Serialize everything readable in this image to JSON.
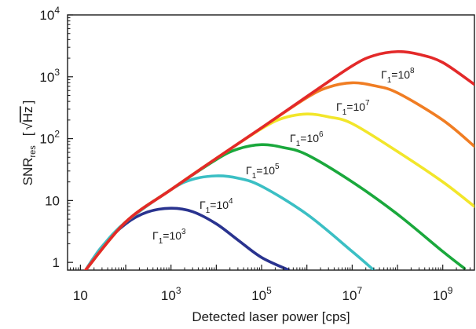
{
  "chart_data": {
    "type": "line",
    "title": "",
    "xlabel": "Detected laser power  [cps]",
    "ylabel": {
      "base": "SNR",
      "sub": "res",
      "bracket_open": "[",
      "sqrt": "√",
      "unit": "Hz",
      "bracket_close": "]"
    },
    "x_scale": "log",
    "y_scale": "log",
    "xlim": [
      5.2,
      5000000000
    ],
    "ylim": [
      0.75,
      10000
    ],
    "x_ticks": [
      {
        "value": 10,
        "base": "10",
        "exp": ""
      },
      {
        "value": 1000,
        "base": "10",
        "exp": "3"
      },
      {
        "value": 100000,
        "base": "10",
        "exp": "5"
      },
      {
        "value": 10000000,
        "base": "10",
        "exp": "7"
      },
      {
        "value": 1000000000,
        "base": "10",
        "exp": "9"
      }
    ],
    "y_ticks": [
      {
        "value": 1,
        "base": "1",
        "exp": ""
      },
      {
        "value": 10,
        "base": "10",
        "exp": ""
      },
      {
        "value": 100,
        "base": "10",
        "exp": "2"
      },
      {
        "value": 1000,
        "base": "10",
        "exp": "3"
      },
      {
        "value": 10000,
        "base": "10",
        "exp": "4"
      }
    ],
    "grid": false,
    "legend": "none",
    "series": [
      {
        "color": "#29338f",
        "label": {
          "sym": "Γ",
          "sub": "1",
          "eq": "=10",
          "exp": "3"
        },
        "x": [
          13,
          30,
          100,
          300,
          1000,
          3000,
          10000,
          30000,
          100000,
          400000
        ],
        "y": [
          0.75,
          1.8,
          4.2,
          6.5,
          7.5,
          6.6,
          4.2,
          2.3,
          1.2,
          0.75
        ]
      },
      {
        "color": "#3bbfc4",
        "label": {
          "sym": "Γ",
          "sub": "1",
          "eq": "=10",
          "exp": "4"
        },
        "x": [
          13,
          30,
          100,
          1000,
          3000,
          10000,
          30000,
          100000,
          1000000,
          10000000,
          30000000
        ],
        "y": [
          0.75,
          1.8,
          4.5,
          15,
          22,
          25,
          23,
          17,
          6,
          1.5,
          0.75
        ]
      },
      {
        "color": "#1aa83c",
        "label": {
          "sym": "Γ",
          "sub": "1",
          "eq": "=10",
          "exp": "5"
        },
        "x": [
          13,
          100,
          1000,
          10000,
          30000,
          100000,
          300000,
          1000000,
          10000000,
          100000000,
          1000000000,
          3000000000
        ],
        "y": [
          0.75,
          4.5,
          15,
          46,
          68,
          80,
          72,
          55,
          20,
          6,
          1.5,
          0.8
        ]
      },
      {
        "color": "#f2e62a",
        "label": {
          "sym": "Γ",
          "sub": "1",
          "eq": "=10",
          "exp": "6"
        },
        "x": [
          13,
          100,
          1000,
          10000,
          100000,
          300000,
          1000000,
          3000000,
          10000000,
          100000000,
          1000000000,
          5000000000
        ],
        "y": [
          0.75,
          4.5,
          15,
          48,
          145,
          215,
          250,
          225,
          175,
          62,
          20,
          8
        ]
      },
      {
        "color": "#f07d23",
        "label": {
          "sym": "Γ",
          "sub": "1",
          "eq": "=10",
          "exp": "7"
        },
        "x": [
          13,
          100,
          1000,
          10000,
          100000,
          1000000,
          3000000,
          10000000,
          30000000,
          100000000,
          1000000000,
          5000000000
        ],
        "y": [
          0.75,
          4.5,
          15,
          48,
          150,
          460,
          680,
          800,
          720,
          550,
          200,
          75
        ]
      },
      {
        "color": "#e32929",
        "label": {
          "sym": "Γ",
          "sub": "1",
          "eq": "=10",
          "exp": "8"
        },
        "x": [
          13,
          100,
          1000,
          10000,
          100000,
          1000000,
          10000000,
          30000000,
          100000000,
          300000000,
          1000000000,
          5000000000
        ],
        "y": [
          0.75,
          4.5,
          15,
          48,
          150,
          480,
          1500,
          2200,
          2550,
          2300,
          1700,
          750
        ]
      }
    ]
  }
}
